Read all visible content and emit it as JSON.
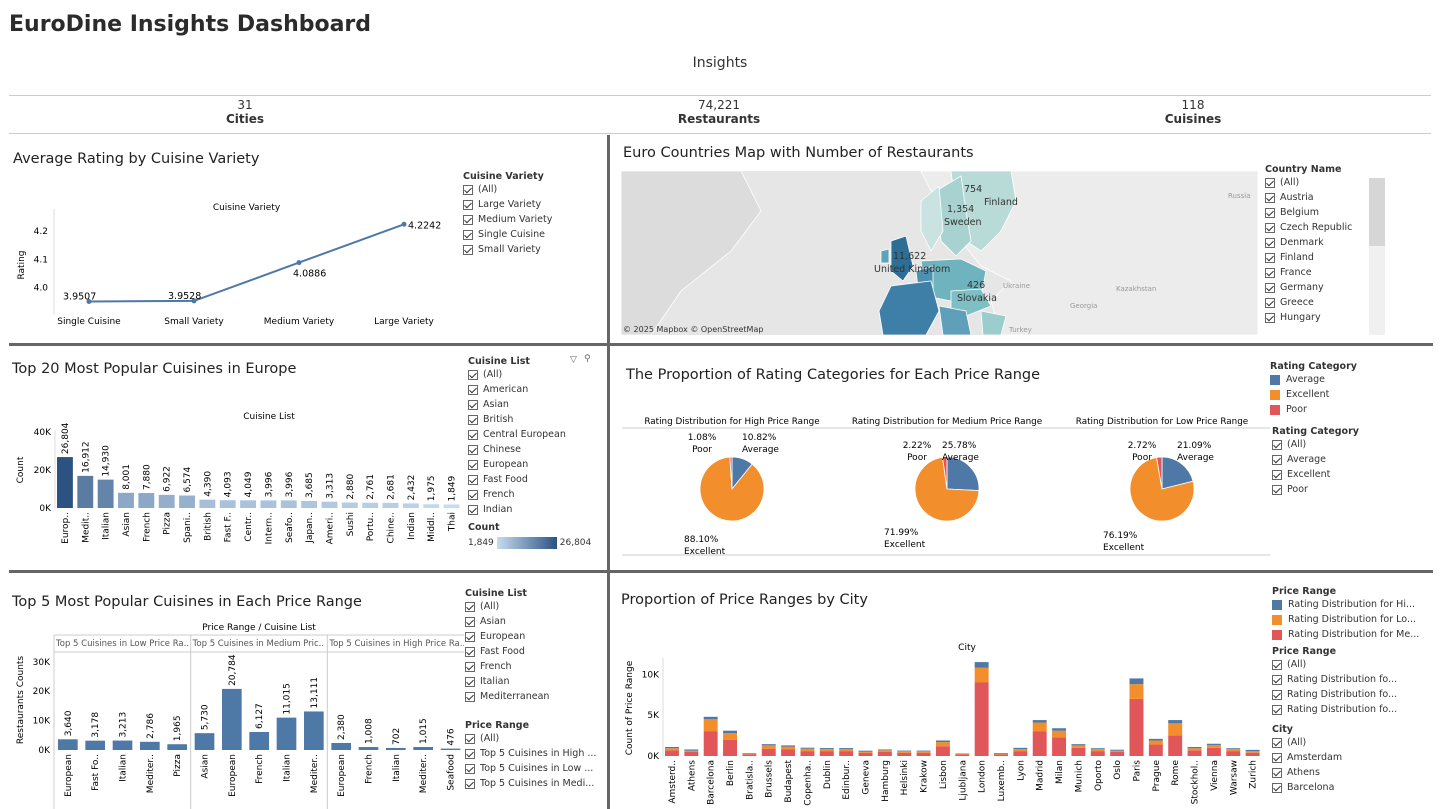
{
  "dashboard_title": "EuroDine Insights Dashboard",
  "insights": {
    "heading": "Insights",
    "kpis": [
      {
        "value": "31",
        "label": "Cities"
      },
      {
        "value": "74,221",
        "label": "Restaurants"
      },
      {
        "value": "118",
        "label": "Cuisines"
      }
    ]
  },
  "panel1": {
    "title": "Average Rating by Cuisine Variety",
    "filter": {
      "title": "Cuisine Variety",
      "items": [
        "(All)",
        "Large Variety",
        "Medium Variety",
        "Single Cuisine",
        "Small Variety"
      ]
    }
  },
  "panel2": {
    "title": "Euro Countries Map with Number of Restaurants",
    "attribution": "© 2025 Mapbox © OpenStreetMap",
    "map_labels": [
      {
        "value": "754",
        "country": "Finland"
      },
      {
        "value": "1,354",
        "country": "Sweden"
      },
      {
        "value": "11,622",
        "country": "United Kingdom"
      },
      {
        "value": "426",
        "country": "Slovakia"
      }
    ],
    "map_background_labels": [
      "Russia",
      "Ukraine",
      "Kazakhstan",
      "Georgia",
      "Turkey"
    ],
    "filter": {
      "title": "Country Name",
      "items": [
        "(All)",
        "Austria",
        "Belgium",
        "Czech Republic",
        "Denmark",
        "Finland",
        "France",
        "Germany",
        "Greece",
        "Hungary"
      ]
    }
  },
  "panel3": {
    "title": "Top 20 Most Popular Cuisines in Europe",
    "filter": {
      "title": "Cuisine List",
      "items": [
        "(All)",
        "American",
        "Asian",
        "British",
        "Central European",
        "Chinese",
        "European",
        "Fast Food",
        "French",
        "Indian"
      ]
    },
    "count_legend": {
      "title": "Count",
      "min": "1,849",
      "max": "26,804"
    }
  },
  "panel4": {
    "title": "The Proportion of Rating Categories for Each Price Range",
    "legend": {
      "title": "Rating Category",
      "items": [
        {
          "label": "Average",
          "color": "#4e79a7"
        },
        {
          "label": "Excellent",
          "color": "#f28e2b"
        },
        {
          "label": "Poor",
          "color": "#e15759"
        }
      ]
    },
    "filter": {
      "title": "Rating Category",
      "items": [
        "(All)",
        "Average",
        "Excellent",
        "Poor"
      ]
    }
  },
  "panel5": {
    "title": "Top 5 Most Popular Cuisines in Each Price Range",
    "filter1": {
      "title": "Cuisine List",
      "items": [
        "(All)",
        "Asian",
        "European",
        "Fast Food",
        "French",
        "Italian",
        "Mediterranean"
      ]
    },
    "filter2": {
      "title": "Price Range",
      "items": [
        "(All)",
        "Top 5 Cuisines in High ...",
        "Top 5 Cuisines in Low ...",
        "Top 5 Cuisines in Medi..."
      ]
    }
  },
  "panel6": {
    "title": "Proportion of Price Ranges by City",
    "legend": {
      "title": "Price Range",
      "items": [
        {
          "label": "Rating Distribution for Hi...",
          "color": "#4e79a7"
        },
        {
          "label": "Rating Distribution for Lo...",
          "color": "#f28e2b"
        },
        {
          "label": "Rating Distribution for Me...",
          "color": "#e15759"
        }
      ]
    },
    "filter1": {
      "title": "Price Range",
      "items": [
        "(All)",
        "Rating Distribution fo...",
        "Rating Distribution fo...",
        "Rating Distribution fo..."
      ]
    },
    "filter2": {
      "title": "City",
      "items": [
        "(All)",
        "Amsterdam",
        "Athens",
        "Barcelona"
      ]
    }
  },
  "chart_data": [
    {
      "type": "line",
      "title": "Cuisine Variety",
      "ylabel": "Rating",
      "categories": [
        "Single Cuisine",
        "Small Variety",
        "Medium Variety",
        "Large Variety"
      ],
      "values": [
        3.9507,
        3.9528,
        4.0886,
        4.2242
      ],
      "labels": [
        "3.9507",
        "3.9528",
        "4.0886",
        "4.2242"
      ],
      "yticks": [
        "4.0",
        "4.1",
        "4.2"
      ],
      "ylim": [
        3.91,
        4.25
      ],
      "color": "#4e79a7"
    },
    {
      "type": "bar",
      "title": "Cuisine List",
      "ylabel": "Count",
      "categories": [
        "Europ..",
        "Medit..",
        "Italian",
        "Asian",
        "French",
        "Pizza",
        "Spani..",
        "British",
        "Fast F..",
        "Centr..",
        "Intern..",
        "Seafo..",
        "Japan..",
        "Ameri..",
        "Sushi",
        "Portu..",
        "Chine..",
        "Indian",
        "Middl..",
        "Thai"
      ],
      "values": [
        26804,
        16912,
        14930,
        8001,
        7880,
        6922,
        6574,
        4390,
        4093,
        4049,
        3996,
        3996,
        3685,
        3313,
        2880,
        2761,
        2681,
        2432,
        1975,
        1849
      ],
      "labels": [
        "26,804",
        "16,912",
        "14,930",
        "8,001",
        "7,880",
        "6,922",
        "6,574",
        "4,390",
        "4,093",
        "4,049",
        "3,996",
        "3,996",
        "3,685",
        "3,313",
        "2,880",
        "2,761",
        "2,681",
        "2,432",
        "1,975",
        "1,849"
      ],
      "yticks": [
        "40K",
        "20K",
        "0K"
      ],
      "ylim": [
        0,
        40000
      ],
      "color_scale": [
        "#c6dbef",
        "#2c5282"
      ]
    },
    {
      "type": "pie",
      "charts": [
        {
          "title": "Rating Distribution for High Price Range",
          "slices": [
            {
              "label": "Average",
              "value": 10.82,
              "text": "10.82%",
              "color": "#4e79a7"
            },
            {
              "label": "Excellent",
              "value": 88.1,
              "text": "88.10%",
              "color": "#f28e2b"
            },
            {
              "label": "Poor",
              "value": 1.08,
              "text": "1.08%",
              "color": "#e15759"
            }
          ]
        },
        {
          "title": "Rating Distribution for Medium Price Range",
          "slices": [
            {
              "label": "Average",
              "value": 25.78,
              "text": "25.78%",
              "color": "#4e79a7"
            },
            {
              "label": "Excellent",
              "value": 71.99,
              "text": "71.99%",
              "color": "#f28e2b"
            },
            {
              "label": "Poor",
              "value": 2.22,
              "text": "2.22%",
              "color": "#e15759"
            }
          ]
        },
        {
          "title": "Rating Distribution for Low Price Range",
          "slices": [
            {
              "label": "Average",
              "value": 21.09,
              "text": "21.09%",
              "color": "#4e79a7"
            },
            {
              "label": "Excellent",
              "value": 76.19,
              "text": "76.19%",
              "color": "#f28e2b"
            },
            {
              "label": "Poor",
              "value": 2.72,
              "text": "2.72%",
              "color": "#e15759"
            }
          ]
        }
      ]
    },
    {
      "type": "bar",
      "title": "Price Range / Cuisine List",
      "ylabel": "Restaurants Counts",
      "yticks": [
        "30K",
        "20K",
        "10K",
        "0K"
      ],
      "ylim": [
        0,
        33000
      ],
      "color": "#4e79a7",
      "groups": [
        {
          "name": "Top 5 Cuisines in Low Price Ra..",
          "categories": [
            "European",
            "Fast Fo..",
            "Italian",
            "Mediter..",
            "Pizza"
          ],
          "values": [
            3640,
            3178,
            3213,
            2786,
            1965
          ],
          "labels": [
            "3,640",
            "3,178",
            "3,213",
            "2,786",
            "1,965"
          ]
        },
        {
          "name": "Top 5 Cuisines in Medium Pric..",
          "categories": [
            "Asian",
            "European",
            "French",
            "Italian",
            "Mediter.."
          ],
          "values": [
            5730,
            20784,
            6127,
            11015,
            13111
          ],
          "labels": [
            "5,730",
            "20,784",
            "6,127",
            "11,015",
            "13,111"
          ]
        },
        {
          "name": "Top 5 Cuisines in High Price Ra..",
          "categories": [
            "European",
            "French",
            "Italian",
            "Mediter..",
            "Seafood"
          ],
          "values": [
            2380,
            1008,
            702,
            1015,
            476
          ],
          "labels": [
            "2,380",
            "1,008",
            "702",
            "1,015",
            "476"
          ]
        }
      ]
    },
    {
      "type": "bar",
      "stacked": true,
      "title": "City",
      "ylabel": "Count of Price Range",
      "yticks": [
        "10K",
        "5K",
        "0K"
      ],
      "ylim": [
        0,
        12000
      ],
      "categories": [
        "Amsterd..",
        "Athens",
        "Barcelona",
        "Berlin",
        "Bratisla..",
        "Brussels",
        "Budapest",
        "Copenha..",
        "Dublin",
        "Edinbur..",
        "Geneva",
        "Hamburg",
        "Helsinki",
        "Krakow",
        "Lisbon",
        "Ljubljana",
        "London",
        "Luxemb..",
        "Lyon",
        "Madrid",
        "Milan",
        "Munich",
        "Oporto",
        "Oslo",
        "Paris",
        "Prague",
        "Rome",
        "Stockhol..",
        "Vienna",
        "Warsaw",
        "Zurich"
      ],
      "series": [
        {
          "name": "Rating Distribution for Me...",
          "color": "#e15759",
          "values": [
            700,
            500,
            3000,
            2000,
            200,
            900,
            800,
            600,
            600,
            600,
            400,
            500,
            400,
            400,
            1200,
            200,
            9000,
            200,
            600,
            3000,
            2300,
            1000,
            600,
            500,
            7000,
            1400,
            2500,
            700,
            1000,
            600,
            400
          ]
        },
        {
          "name": "Rating Distribution for Lo...",
          "color": "#f28e2b",
          "values": [
            250,
            150,
            1500,
            800,
            80,
            400,
            350,
            300,
            250,
            250,
            150,
            200,
            180,
            180,
            500,
            70,
            1800,
            80,
            250,
            1100,
            800,
            300,
            250,
            150,
            1800,
            500,
            1500,
            250,
            350,
            250,
            200
          ]
        },
        {
          "name": "Rating Distribution for Hi...",
          "color": "#4e79a7",
          "values": [
            150,
            150,
            300,
            300,
            70,
            150,
            150,
            120,
            120,
            120,
            100,
            100,
            80,
            80,
            200,
            50,
            700,
            80,
            150,
            300,
            300,
            150,
            100,
            120,
            700,
            200,
            400,
            150,
            150,
            100,
            150
          ]
        }
      ]
    }
  ]
}
